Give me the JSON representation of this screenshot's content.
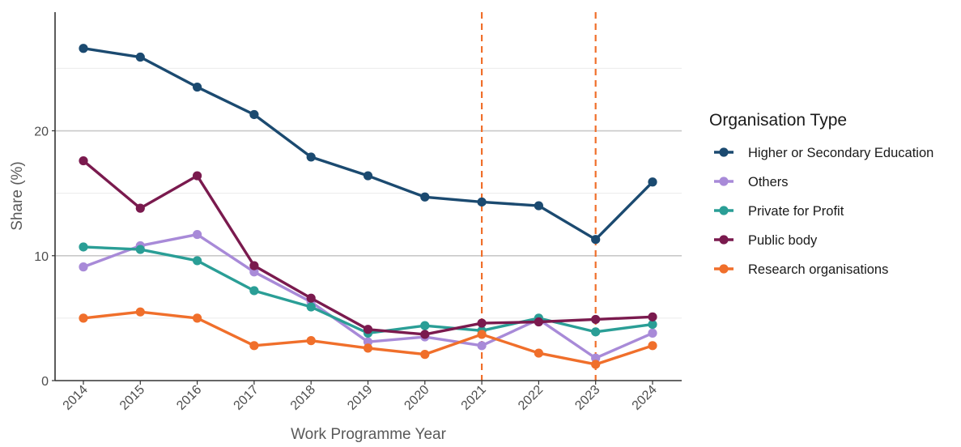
{
  "chart_data": {
    "type": "line",
    "title": "",
    "xlabel": "Work Programme Year",
    "ylabel": "Share (%)",
    "x": [
      "2014",
      "2015",
      "2016",
      "2017",
      "2018",
      "2019",
      "2020",
      "2021",
      "2022",
      "2023",
      "2024"
    ],
    "ylim": [
      0,
      29.5
    ],
    "yticks": [
      "0",
      "10",
      "20"
    ],
    "ytick_values": [
      0,
      10,
      20
    ],
    "grid": "horizontal",
    "vlines": [
      "2021",
      "2023"
    ],
    "vline_color": "#f06f2b",
    "legend": {
      "title": "Organisation Type",
      "position": "right"
    },
    "series": [
      {
        "name": "Higher or Secondary Education",
        "color": "#1b4a70",
        "values": [
          26.6,
          25.9,
          23.5,
          21.3,
          17.9,
          16.4,
          14.7,
          14.3,
          14.0,
          11.3,
          15.9
        ]
      },
      {
        "name": "Others",
        "color": "#a88ad8",
        "values": [
          9.1,
          10.8,
          11.7,
          8.7,
          6.3,
          3.1,
          3.5,
          2.8,
          4.9,
          1.8,
          3.8
        ]
      },
      {
        "name": "Private for Profit",
        "color": "#2a9e96",
        "values": [
          10.7,
          10.5,
          9.6,
          7.2,
          5.9,
          3.8,
          4.4,
          4.0,
          5.0,
          3.9,
          4.5
        ]
      },
      {
        "name": "Public body",
        "color": "#7a1a4e",
        "values": [
          17.6,
          13.8,
          16.4,
          9.2,
          6.6,
          4.1,
          3.7,
          4.6,
          4.7,
          4.9,
          5.1
        ]
      },
      {
        "name": "Research organisations",
        "color": "#f06f2b",
        "values": [
          5.0,
          5.5,
          5.0,
          2.8,
          3.2,
          2.6,
          2.1,
          3.7,
          2.2,
          1.3,
          2.8
        ]
      }
    ]
  }
}
